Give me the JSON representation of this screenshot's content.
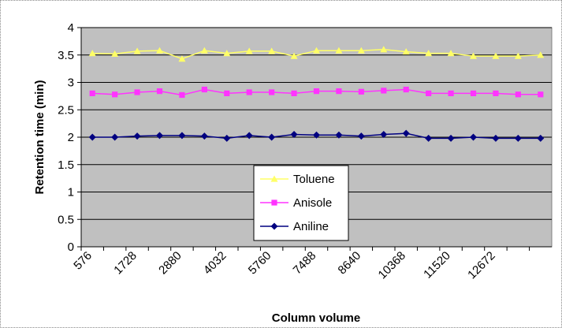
{
  "chart_data": {
    "type": "line",
    "y_label": "Retention time (min)",
    "x_label": "Column volume",
    "categories": [
      "576",
      null,
      "1728",
      null,
      "2880",
      null,
      "4032",
      null,
      "5760",
      null,
      "7488",
      null,
      "8640",
      null,
      "10368",
      null,
      "11520",
      null,
      "12672",
      null,
      null
    ],
    "series": [
      {
        "name": "Toluene",
        "color": "#ffff66",
        "marker": "triangle",
        "values": [
          3.53,
          3.52,
          3.57,
          3.58,
          3.43,
          3.58,
          3.53,
          3.57,
          3.57,
          3.48,
          3.58,
          3.58,
          3.58,
          3.6,
          3.56,
          3.53,
          3.53,
          3.48,
          3.48,
          3.48,
          3.5
        ]
      },
      {
        "name": "Anisole",
        "color": "#ff33ff",
        "marker": "square",
        "values": [
          2.8,
          2.78,
          2.82,
          2.84,
          2.77,
          2.87,
          2.8,
          2.82,
          2.82,
          2.8,
          2.84,
          2.84,
          2.83,
          2.85,
          2.87,
          2.8,
          2.8,
          2.8,
          2.8,
          2.78,
          2.78
        ]
      },
      {
        "name": "Aniline",
        "color": "#000080",
        "marker": "diamond",
        "values": [
          2,
          2,
          2.02,
          2.03,
          2.03,
          2.02,
          1.98,
          2.03,
          2,
          2.05,
          2.04,
          2.04,
          2.02,
          2.05,
          2.07,
          1.98,
          1.98,
          2,
          1.98,
          1.98,
          1.98
        ]
      }
    ],
    "ylim": [
      0,
      4
    ],
    "yticks": [
      0,
      0.5,
      1,
      1.5,
      2,
      2.5,
      3,
      3.5,
      4
    ],
    "grid": true,
    "legend": "center",
    "plot_background": "#c0c0c0"
  }
}
